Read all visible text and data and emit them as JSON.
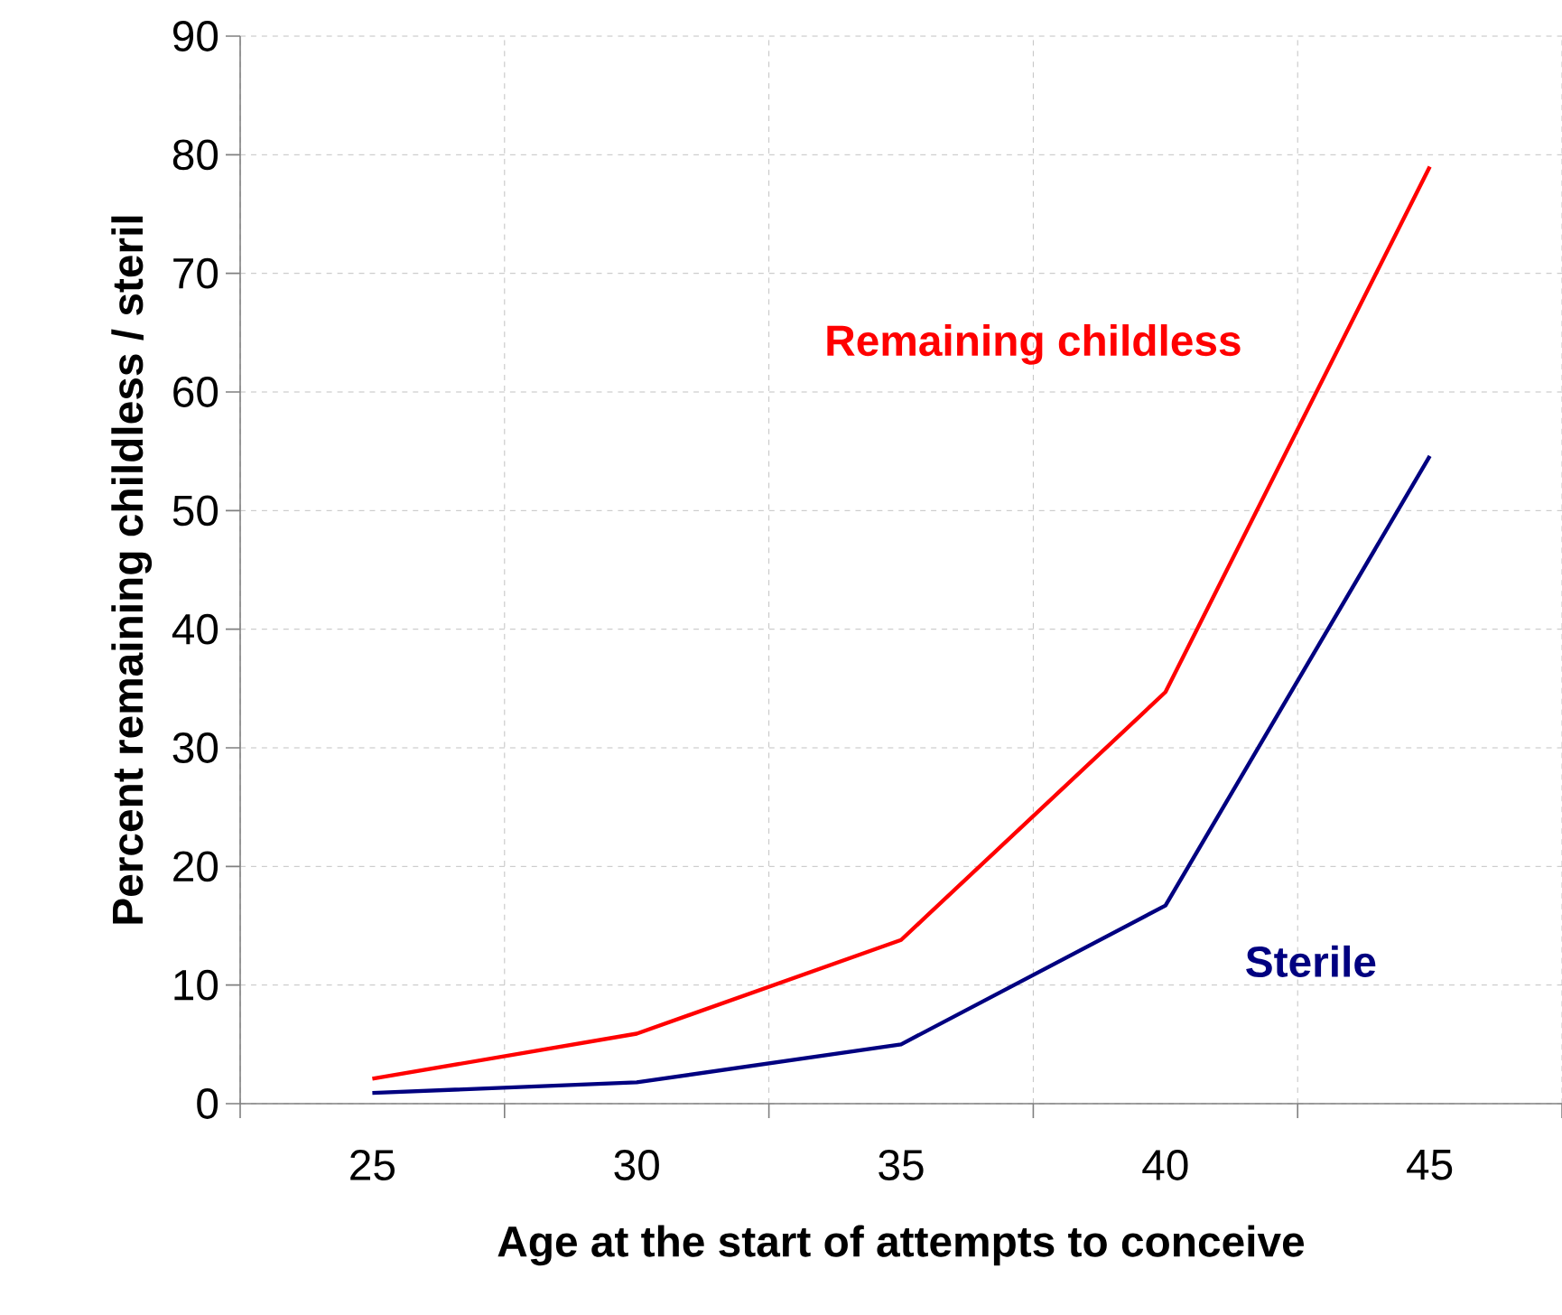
{
  "chart_data": {
    "type": "line",
    "xlabel": "Age at the start of attempts to conceive",
    "ylabel": "Percent remaining childless / steril",
    "categories": [
      "25",
      "30",
      "35",
      "40",
      "45"
    ],
    "series": [
      {
        "name": "Remaining childless",
        "color": "#ff0000",
        "values": [
          2.1,
          5.9,
          13.8,
          34.7,
          79
        ]
      },
      {
        "name": "Sterile",
        "color": "#000080",
        "values": [
          0.9,
          1.8,
          5.0,
          16.7,
          54.6
        ]
      }
    ],
    "ylim": [
      0,
      90
    ],
    "yticks": [
      0,
      10,
      20,
      30,
      40,
      50,
      60,
      70,
      80,
      90
    ],
    "grid": true,
    "legend": false,
    "marker": "none",
    "line_style": "solid"
  }
}
